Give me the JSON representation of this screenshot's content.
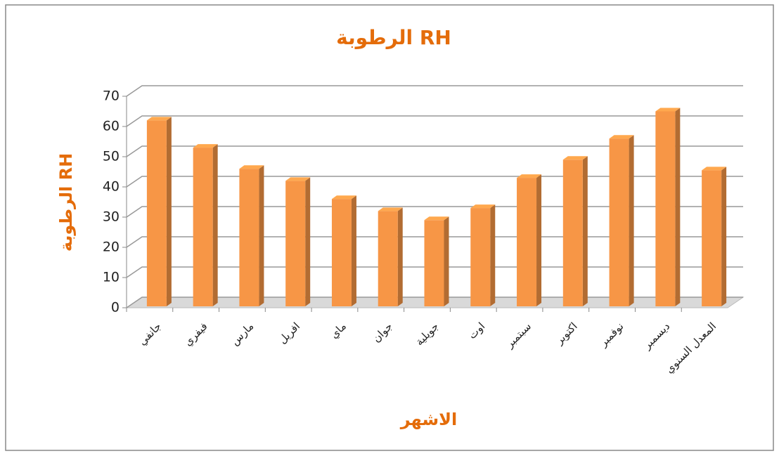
{
  "chart_data": {
    "type": "bar3d",
    "title": "الرطوبة RH",
    "x_label": "الاشهر",
    "y_label": "الرطوبة RH",
    "categories": [
      "جانفي",
      "فيفري",
      "مارس",
      "افريل",
      "ماي",
      "جوان",
      "جويلية",
      "اوت",
      "سبتمبر",
      "اكتوبر",
      "نوفمبر",
      "ديسمبر",
      "المعدل السنوي"
    ],
    "values": [
      62,
      53,
      46,
      42,
      36,
      32,
      29,
      33,
      43,
      49,
      56,
      65,
      45.5
    ],
    "color": "#f79646",
    "ylim": [
      0,
      70
    ],
    "yticks": [
      0,
      10,
      20,
      30,
      40,
      50,
      60,
      70
    ],
    "grid": true
  }
}
